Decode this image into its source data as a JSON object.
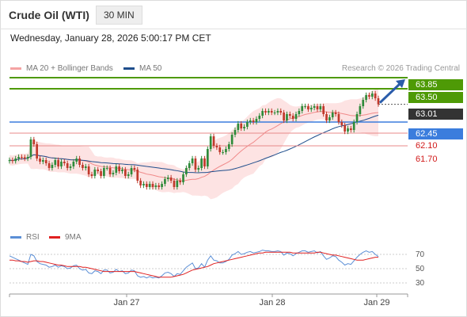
{
  "header": {
    "instrument": "Crude Oil (WTI)",
    "timeframe": "30 MIN"
  },
  "datetime": "Wednesday, January 28, 2026 5:00:17 PM CET",
  "legend": {
    "ma20": "MA 20 + Bollinger Bands",
    "ma50": "MA 50",
    "credit": "Research © 2026 Trading Central",
    "rsi": "RSI",
    "rsi_ma": "9MA",
    "colors": {
      "ma20": "#f08a8a",
      "ma50": "#1f4e8c",
      "rsi": "#5b8fd6",
      "rsi_ma": "#e02020",
      "candle_up": "#2e8b3a",
      "candle_down": "#c0392b"
    }
  },
  "levels": {
    "r2": "63.85",
    "r1": "63.50",
    "last": "63.01",
    "pivot": "62.45",
    "s1": "62.10",
    "s2": "61.70"
  },
  "rsi_ticks": [
    "70",
    "50",
    "30"
  ],
  "xaxis": [
    "Jan 27",
    "Jan 28",
    "Jan 29"
  ],
  "chart_data": {
    "type": "candlestick",
    "price_range": [
      59.3,
      64.0
    ],
    "rsi_range": [
      20,
      80
    ],
    "resistance": [
      63.85,
      63.5
    ],
    "last_price": 63.01,
    "pivot": 62.45,
    "support": [
      62.1,
      61.7
    ],
    "closes": [
      61.25,
      61.22,
      61.3,
      61.35,
      61.34,
      61.3,
      61.35,
      61.9,
      61.75,
      61.3,
      61.2,
      61.25,
      61.15,
      61.0,
      61.1,
      61.25,
      61.05,
      61.2,
      61.15,
      61.0,
      61.05,
      61.2,
      61.3,
      61.1,
      61.0,
      61.05,
      60.8,
      60.75,
      60.95,
      60.9,
      60.75,
      61.0,
      61.0,
      60.8,
      60.85,
      61.05,
      60.9,
      60.95,
      60.75,
      60.8,
      61.0,
      60.95,
      60.6,
      60.45,
      60.5,
      60.4,
      60.5,
      60.4,
      60.45,
      60.4,
      60.5,
      60.65,
      60.7,
      60.6,
      60.4,
      60.6,
      60.55,
      60.8,
      61.0,
      61.15,
      61.3,
      60.95,
      61.0,
      61.3,
      61.05,
      61.6,
      62.0,
      61.7,
      61.65,
      61.5,
      61.5,
      61.6,
      61.75,
      62.05,
      62.2,
      62.4,
      62.25,
      62.3,
      62.45,
      62.5,
      62.45,
      62.55,
      62.65,
      62.8,
      62.75,
      62.8,
      62.75,
      62.75,
      62.8,
      62.75,
      62.5,
      62.7,
      62.65,
      62.55,
      62.7,
      62.8,
      62.95,
      62.95,
      62.85,
      62.9,
      62.95,
      62.85,
      62.95,
      62.7,
      62.5,
      62.6,
      62.75,
      62.7,
      62.45,
      62.35,
      62.15,
      62.25,
      62.2,
      62.45,
      62.7,
      62.95,
      63.15,
      63.3,
      63.25,
      63.35,
      63.2,
      63.01
    ],
    "rsi": [
      68,
      66,
      64,
      62,
      60,
      58,
      56,
      70,
      68,
      60,
      57,
      56,
      55,
      52,
      53,
      55,
      52,
      54,
      53,
      50,
      51,
      54,
      55,
      50,
      48,
      49,
      44,
      43,
      47,
      46,
      43,
      48,
      48,
      44,
      45,
      49,
      46,
      47,
      43,
      44,
      48,
      47,
      40,
      38,
      39,
      37,
      39,
      37,
      38,
      37,
      40,
      44,
      45,
      43,
      39,
      43,
      42,
      47,
      52,
      55,
      58,
      50,
      51,
      57,
      52,
      62,
      68,
      62,
      61,
      58,
      58,
      60,
      63,
      69,
      71,
      74,
      70,
      71,
      73,
      74,
      72,
      73,
      74,
      76,
      75,
      75,
      74,
      74,
      75,
      74,
      69,
      72,
      71,
      68,
      71,
      73,
      75,
      75,
      73,
      74,
      75,
      72,
      74,
      68,
      63,
      65,
      68,
      67,
      62,
      59,
      55,
      57,
      56,
      61,
      66,
      70,
      73,
      75,
      73,
      74,
      70,
      67
    ],
    "rsi_ma": [
      62,
      62,
      61,
      61,
      60,
      60,
      59,
      60,
      61,
      61,
      60,
      60,
      59,
      58,
      57,
      56,
      55,
      55,
      54,
      53,
      53,
      53,
      53,
      53,
      52,
      52,
      51,
      50,
      49,
      48,
      47,
      46,
      46,
      46,
      46,
      46,
      46,
      46,
      46,
      46,
      46,
      46,
      45,
      44,
      43,
      42,
      41,
      40,
      39,
      38,
      38,
      38,
      38,
      38,
      39,
      40,
      41,
      42,
      44,
      46,
      48,
      49,
      50,
      51,
      52,
      53,
      55,
      57,
      58,
      59,
      60,
      61,
      62,
      63,
      64,
      65,
      66,
      67,
      68,
      69,
      70,
      71,
      72,
      72,
      73,
      73,
      73,
      73,
      73,
      73,
      73,
      73,
      73,
      72,
      72,
      72,
      72,
      72,
      72,
      72,
      72,
      73,
      73,
      72,
      71,
      70,
      69,
      69,
      68,
      67,
      66,
      65,
      64,
      63,
      62,
      62,
      62,
      63,
      64,
      65,
      66,
      66
    ]
  }
}
